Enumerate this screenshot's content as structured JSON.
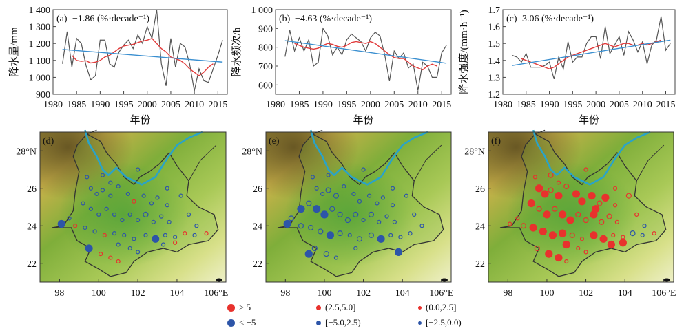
{
  "xlabel": "年份",
  "ts_xticks": [
    1980,
    1985,
    1990,
    1995,
    2000,
    2005,
    2010,
    2015
  ],
  "chart_data": [
    {
      "type": "line",
      "panel": "(a)",
      "trend_label": "−1.86 (%·decade⁻¹)",
      "ylabel": "降水量/mm",
      "xlim": [
        1980,
        2017
      ],
      "ylim": [
        900,
        1400
      ],
      "yticks": [
        "900",
        "1 000",
        "1 100",
        "1 200",
        "1 300",
        "1 400"
      ],
      "ytick_values": [
        900,
        1000,
        1100,
        1200,
        1300,
        1400
      ],
      "years": [
        1982,
        1983,
        1984,
        1985,
        1986,
        1987,
        1988,
        1989,
        1990,
        1991,
        1992,
        1993,
        1994,
        1995,
        1996,
        1997,
        1998,
        1999,
        2000,
        2001,
        2002,
        2003,
        2004,
        2005,
        2006,
        2007,
        2008,
        2009,
        2010,
        2011,
        2012,
        2013,
        2014,
        2015,
        2016
      ],
      "series": [
        {
          "color": "#555555",
          "values": [
            1080,
            1270,
            1060,
            1230,
            1200,
            1070,
            985,
            1010,
            1220,
            1220,
            1080,
            1060,
            1150,
            1190,
            1220,
            1170,
            1250,
            1200,
            1300,
            1230,
            1400,
            1080,
            950,
            1230,
            1060,
            1200,
            1180,
            1080,
            920,
            1050,
            980,
            970,
            1050,
            1130,
            1220
          ]
        },
        {
          "color": "#e23b3b",
          "values": [
            null,
            null,
            1130,
            1100,
            1095,
            1098,
            1085,
            1090,
            1100,
            1120,
            1130,
            1150,
            1170,
            1185,
            1190,
            1195,
            1205,
            1215,
            1220,
            1230,
            1200,
            1170,
            1150,
            1120,
            1110,
            1100,
            1080,
            1050,
            1030,
            1010,
            1030,
            1060,
            1080,
            null,
            null
          ]
        },
        {
          "color": "#3a8fd0",
          "values": [
            1165,
            null,
            null,
            null,
            null,
            null,
            null,
            null,
            null,
            null,
            null,
            null,
            null,
            null,
            null,
            null,
            null,
            null,
            null,
            null,
            null,
            null,
            null,
            null,
            null,
            null,
            null,
            null,
            null,
            null,
            null,
            null,
            null,
            null,
            1090
          ]
        }
      ]
    },
    {
      "type": "line",
      "panel": "(b)",
      "trend_label": "−4.63 (%·decade⁻¹)",
      "ylabel": "降水频次/h",
      "xlim": [
        1980,
        2017
      ],
      "ylim": [
        550,
        1000
      ],
      "yticks": [
        "600",
        "700",
        "800",
        "900",
        "1 000"
      ],
      "ytick_values": [
        600,
        700,
        800,
        900,
        1000
      ],
      "years": [
        1982,
        1983,
        1984,
        1985,
        1986,
        1987,
        1988,
        1989,
        1990,
        1991,
        1992,
        1993,
        1994,
        1995,
        1996,
        1997,
        1998,
        1999,
        2000,
        2001,
        2002,
        2003,
        2004,
        2005,
        2006,
        2007,
        2008,
        2009,
        2010,
        2011,
        2012,
        2013,
        2014,
        2015,
        2016
      ],
      "series": [
        {
          "color": "#555555",
          "values": [
            750,
            890,
            780,
            850,
            780,
            840,
            700,
            720,
            900,
            860,
            760,
            800,
            760,
            840,
            870,
            850,
            830,
            780,
            850,
            880,
            860,
            760,
            620,
            780,
            740,
            770,
            690,
            710,
            570,
            720,
            700,
            640,
            640,
            770,
            810
          ]
        },
        {
          "color": "#e23b3b",
          "values": [
            null,
            null,
            820,
            810,
            800,
            795,
            790,
            795,
            810,
            820,
            815,
            805,
            800,
            810,
            825,
            830,
            825,
            820,
            830,
            820,
            800,
            780,
            760,
            745,
            740,
            740,
            720,
            700,
            690,
            680,
            700,
            710,
            700,
            null,
            null
          ]
        },
        {
          "color": "#3a8fd0",
          "values": [
            835,
            null,
            null,
            null,
            null,
            null,
            null,
            null,
            null,
            null,
            null,
            null,
            null,
            null,
            null,
            null,
            null,
            null,
            null,
            null,
            null,
            null,
            null,
            null,
            null,
            null,
            null,
            null,
            null,
            null,
            null,
            null,
            null,
            null,
            715
          ]
        }
      ]
    },
    {
      "type": "line",
      "panel": "(c)",
      "trend_label": "3.06 (%·decade⁻¹)",
      "ylabel": "降水强度/(mm·h⁻¹)",
      "xlim": [
        1980,
        2017
      ],
      "ylim": [
        1.2,
        1.7
      ],
      "yticks": [
        "1.2",
        "1.3",
        "1.4",
        "1.5",
        "1.6",
        "1.7"
      ],
      "ytick_values": [
        1.2,
        1.3,
        1.4,
        1.5,
        1.6,
        1.7
      ],
      "years": [
        1982,
        1983,
        1984,
        1985,
        1986,
        1987,
        1988,
        1989,
        1990,
        1991,
        1992,
        1993,
        1994,
        1995,
        1996,
        1997,
        1998,
        1999,
        2000,
        2001,
        2002,
        2003,
        2004,
        2005,
        2006,
        2007,
        2008,
        2009,
        2010,
        2011,
        2012,
        2013,
        2014,
        2015,
        2016
      ],
      "series": [
        {
          "color": "#555555",
          "values": [
            1.43,
            1.42,
            1.39,
            1.44,
            1.36,
            1.36,
            1.36,
            1.37,
            1.39,
            1.29,
            1.42,
            1.35,
            1.51,
            1.39,
            1.42,
            1.42,
            1.5,
            1.54,
            1.54,
            1.41,
            1.6,
            1.44,
            1.49,
            1.54,
            1.43,
            1.57,
            1.52,
            1.45,
            1.51,
            1.38,
            1.49,
            1.52,
            1.66,
            1.46,
            1.5
          ]
        },
        {
          "color": "#e23b3b",
          "values": [
            null,
            null,
            1.41,
            1.4,
            1.39,
            1.38,
            1.37,
            1.36,
            1.35,
            1.36,
            1.38,
            1.4,
            1.42,
            1.43,
            1.44,
            1.45,
            1.46,
            1.47,
            1.48,
            1.49,
            1.5,
            1.49,
            1.48,
            1.49,
            1.5,
            1.5,
            1.49,
            1.49,
            1.5,
            1.49,
            1.5,
            1.51,
            1.52,
            null,
            null
          ]
        },
        {
          "color": "#3a8fd0",
          "values": [
            1.37,
            null,
            null,
            null,
            null,
            null,
            null,
            null,
            null,
            null,
            null,
            null,
            null,
            null,
            null,
            null,
            null,
            null,
            null,
            null,
            null,
            null,
            null,
            null,
            null,
            null,
            null,
            null,
            null,
            null,
            null,
            null,
            null,
            null,
            1.52
          ]
        }
      ]
    }
  ],
  "maps": {
    "panels": [
      "(d)",
      "(e)",
      "(f)"
    ],
    "lon_ticks": [
      "98",
      "100",
      "102",
      "104",
      "106°E"
    ],
    "lat_ticks": [
      "28°N",
      "26",
      "24",
      "22"
    ]
  },
  "legend": {
    "items": [
      {
        "label": "> 5",
        "color": "#e8322d",
        "size": "large"
      },
      {
        "label": "< −5",
        "color": "#2d55a8",
        "size": "large"
      },
      {
        "label": "(2.5,5.0]",
        "color": "#e8322d",
        "size": "medium"
      },
      {
        "label": "[−5.0,2.5)",
        "color": "#2d55a8",
        "size": "medium"
      },
      {
        "label": "(0.0,2.5]",
        "color": "#e8322d",
        "size": "small"
      },
      {
        "label": "[−2.5,0.0)",
        "color": "#2d55a8",
        "size": "small"
      }
    ]
  },
  "colors": {
    "obs": "#555555",
    "smooth": "#e23b3b",
    "trend": "#3a8fd0",
    "river": "#2aa3c8",
    "increase": "#e8322d",
    "decrease": "#2d55a8"
  }
}
